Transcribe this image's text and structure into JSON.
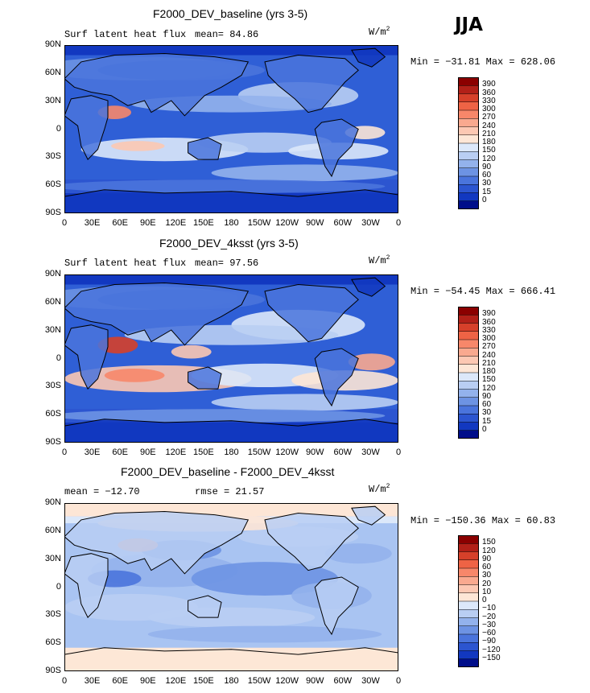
{
  "figure": {
    "season": "JJA",
    "y_tick_labels": [
      "90N",
      "60N",
      "30N",
      "0",
      "30S",
      "60S",
      "90S"
    ],
    "x_tick_labels": [
      "0",
      "30E",
      "60E",
      "90E",
      "120E",
      "150E",
      "180",
      "150W",
      "120W",
      "90W",
      "60W",
      "30W",
      "0"
    ]
  },
  "panels": [
    {
      "title": "F2000_DEV_baseline (yrs 3-5)",
      "left_label": "Surf latent heat flux",
      "stat_label": "mean=",
      "stat_value": "84.86",
      "units_base": "W/m",
      "units_exp": "2",
      "minmax": "Min = −31.81 Max = 628.06",
      "colorbar": [
        "390",
        "360",
        "330",
        "300",
        "270",
        "240",
        "210",
        "180",
        "150",
        "120",
        "90",
        "60",
        "30",
        "15",
        "0"
      ],
      "colors": {
        "ocean_base": "#2f5fd6",
        "high": "#f08a6a"
      }
    },
    {
      "title": "F2000_DEV_4ksst (yrs 3-5)",
      "left_label": "Surf latent heat flux",
      "stat_label": "mean=",
      "stat_value": "97.56",
      "units_base": "W/m",
      "units_exp": "2",
      "minmax": "Min = −54.45 Max = 666.41",
      "colorbar": [
        "390",
        "360",
        "330",
        "300",
        "270",
        "240",
        "210",
        "180",
        "150",
        "120",
        "90",
        "60",
        "30",
        "15",
        "0"
      ],
      "colors": {
        "ocean_base": "#2f5fd6",
        "high": "#f08a6a"
      }
    },
    {
      "title": "F2000_DEV_baseline - F2000_DEV_4ksst",
      "left_label": "mean = −12.70",
      "stat_label": "rmse =",
      "stat_value": "21.57",
      "units_base": "W/m",
      "units_exp": "2",
      "minmax": "Min = −150.36 Max =  60.83",
      "colorbar": [
        "150",
        "120",
        "90",
        "60",
        "30",
        "20",
        "10",
        "0",
        "−10",
        "−20",
        "−30",
        "−60",
        "−90",
        "−120",
        "−150"
      ],
      "colors": {
        "ocean_base": "#a9c4f2",
        "high": "#fde2cf"
      }
    }
  ],
  "colormaps": {
    "flux": [
      "#8b0000",
      "#b22018",
      "#d6402a",
      "#ee6345",
      "#f7876a",
      "#f9a98f",
      "#fcc8b3",
      "#fde6d6",
      "#dce8fa",
      "#b9cef3",
      "#93b2ec",
      "#6d93e3",
      "#4a74dc",
      "#2c55d0",
      "#1238c0",
      "#000e8a"
    ],
    "diff": [
      "#8b0000",
      "#b22018",
      "#d6402a",
      "#ee6345",
      "#f7876a",
      "#f9a98f",
      "#fcc8b3",
      "#fde6d6",
      "#dce8fa",
      "#b9cef3",
      "#93b2ec",
      "#6d93e3",
      "#4a74dc",
      "#2c55d0",
      "#1238c0",
      "#000e8a"
    ]
  }
}
